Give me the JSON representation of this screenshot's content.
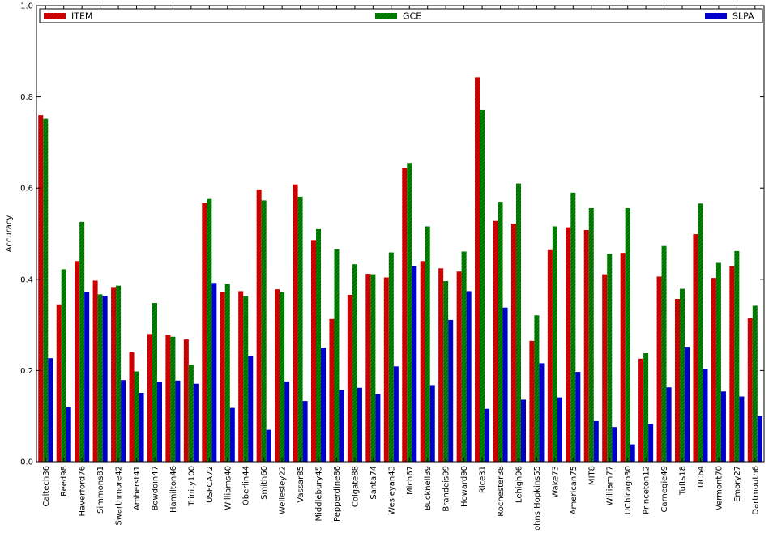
{
  "chart_data": {
    "type": "bar",
    "title": "",
    "xlabel": "",
    "ylabel": "Accuracy",
    "ylim": [
      0.0,
      1.0
    ],
    "yticks": [
      "0.0",
      "0.2",
      "0.4",
      "0.6",
      "0.8",
      "1.0"
    ],
    "grid": false,
    "legend_position": "top",
    "categories": [
      "Caltech36",
      "Reed98",
      "Haverford76",
      "Simmons81",
      "Swarthmore42",
      "Amherst41",
      "Bowdoin47",
      "Hamilton46",
      "Trinity100",
      "USFCA72",
      "Williams40",
      "Oberlin44",
      "Smith60",
      "Wellesley22",
      "Vassar85",
      "Middlebury45",
      "Pepperdine86",
      "Colgate88",
      "Santa74",
      "Wesleyan43",
      "Mich67",
      "Bucknell39",
      "Brandeis99",
      "Howard90",
      "Rice31",
      "Rochester38",
      "Lehigh96",
      "Johns Hopkins55",
      "Wake73",
      "American75",
      "MIT8",
      "William77",
      "UChicago30",
      "Princeton12",
      "Carnegie49",
      "Tufts18",
      "UC64",
      "Vermont70",
      "Emory27",
      "Dartmouth6"
    ],
    "series": [
      {
        "name": "ITEM",
        "color": "#dd0000",
        "values": [
          0.76,
          0.345,
          0.44,
          0.397,
          0.383,
          0.24,
          0.28,
          0.278,
          0.268,
          0.568,
          0.373,
          0.374,
          0.597,
          0.378,
          0.608,
          0.486,
          0.313,
          0.366,
          0.412,
          0.404,
          0.643,
          0.44,
          0.424,
          0.417,
          0.843,
          0.528,
          0.522,
          0.265,
          0.464,
          0.514,
          0.508,
          0.411,
          0.458,
          0.226,
          0.406,
          0.357,
          0.499,
          0.403,
          0.429,
          0.315
        ]
      },
      {
        "name": "GCE",
        "color": "#007700",
        "values": [
          0.752,
          0.422,
          0.526,
          0.367,
          0.386,
          0.198,
          0.348,
          0.274,
          0.213,
          0.576,
          0.39,
          0.363,
          0.573,
          0.372,
          0.581,
          0.51,
          0.466,
          0.433,
          0.411,
          0.459,
          0.655,
          0.516,
          0.396,
          0.461,
          0.771,
          0.57,
          0.61,
          0.321,
          0.516,
          0.59,
          0.556,
          0.456,
          0.556,
          0.238,
          0.473,
          0.379,
          0.566,
          0.436,
          0.462,
          0.342
        ]
      },
      {
        "name": "SLPA",
        "color": "#0000dd",
        "values": [
          0.227,
          0.119,
          0.373,
          0.364,
          0.179,
          0.151,
          0.175,
          0.178,
          0.171,
          0.392,
          0.118,
          0.232,
          0.07,
          0.176,
          0.133,
          0.25,
          0.157,
          0.162,
          0.148,
          0.209,
          0.429,
          0.168,
          0.311,
          0.374,
          0.116,
          0.338,
          0.136,
          0.216,
          0.141,
          0.197,
          0.089,
          0.076,
          0.038,
          0.083,
          0.163,
          0.252,
          0.203,
          0.154,
          0.143,
          0.1
        ]
      }
    ]
  }
}
